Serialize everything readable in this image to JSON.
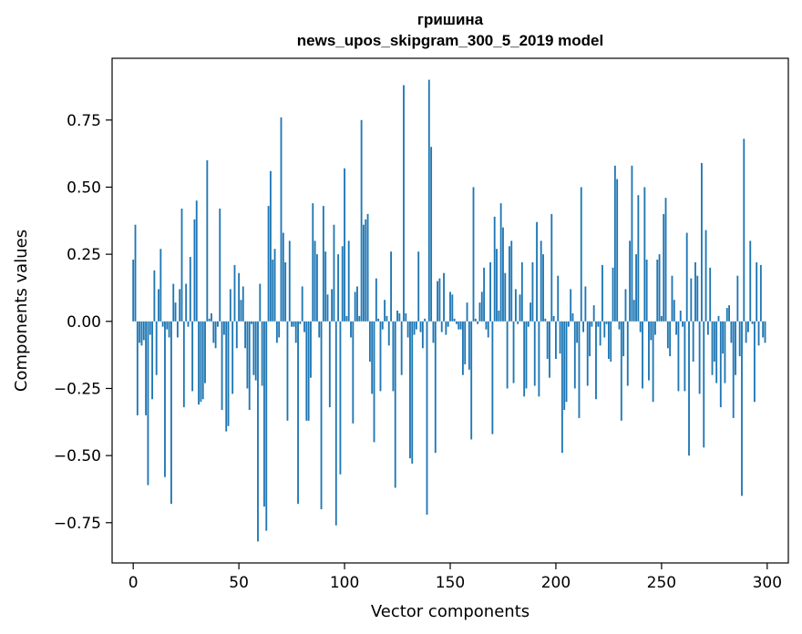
{
  "chart_data": {
    "type": "bar",
    "title_line_1": "гришина",
    "title_line_2": "news_upos_skipgram_300_5_2019 model",
    "xlabel": "Vector components",
    "ylabel": "Components values",
    "xlim": [
      -10,
      310
    ],
    "ylim": [
      -0.9,
      0.98
    ],
    "xticks": [
      0,
      50,
      100,
      150,
      200,
      250,
      300
    ],
    "yticks": [
      -0.75,
      -0.5,
      -0.25,
      0.0,
      0.25,
      0.5,
      0.75
    ],
    "xtick_labels": [
      "0",
      "50",
      "100",
      "150",
      "200",
      "250",
      "300"
    ],
    "ytick_labels": [
      "−0.75",
      "−0.50",
      "−0.25",
      "0.00",
      "0.25",
      "0.50",
      "0.75"
    ],
    "grid": false,
    "bar_color": "#1f77b4",
    "values": [
      0.23,
      0.36,
      -0.35,
      -0.08,
      -0.09,
      -0.07,
      -0.35,
      -0.61,
      -0.05,
      -0.29,
      0.19,
      -0.2,
      0.12,
      0.27,
      -0.02,
      -0.58,
      -0.03,
      -0.06,
      -0.68,
      0.14,
      0.07,
      -0.06,
      0.12,
      0.42,
      -0.32,
      0.14,
      -0.02,
      0.24,
      -0.26,
      0.38,
      0.45,
      -0.31,
      -0.3,
      -0.29,
      -0.23,
      0.6,
      0.01,
      0.03,
      -0.08,
      -0.1,
      -0.02,
      0.42,
      -0.33,
      -0.05,
      -0.41,
      -0.39,
      0.12,
      -0.27,
      0.21,
      -0.1,
      0.18,
      0.08,
      0.13,
      -0.1,
      -0.25,
      -0.33,
      -0.01,
      -0.2,
      -0.22,
      -0.82,
      0.14,
      -0.24,
      -0.69,
      -0.78,
      0.43,
      0.56,
      0.23,
      0.27,
      -0.08,
      -0.06,
      0.76,
      0.33,
      0.22,
      -0.37,
      0.3,
      -0.02,
      -0.02,
      -0.08,
      -0.68,
      -0.01,
      0.13,
      -0.04,
      -0.37,
      -0.37,
      -0.21,
      0.44,
      0.3,
      0.25,
      -0.06,
      -0.7,
      0.43,
      0.26,
      0.1,
      -0.32,
      0.12,
      0.36,
      -0.76,
      0.25,
      -0.57,
      0.28,
      0.57,
      0.02,
      0.3,
      -0.06,
      -0.38,
      0.11,
      0.13,
      0.02,
      0.75,
      0.36,
      0.38,
      0.4,
      -0.15,
      -0.27,
      -0.45,
      0.16,
      0.01,
      -0.26,
      -0.03,
      0.08,
      0.02,
      -0.09,
      0.26,
      -0.26,
      -0.62,
      0.04,
      0.03,
      -0.2,
      0.88,
      0.03,
      -0.06,
      -0.51,
      -0.53,
      -0.05,
      -0.03,
      0.26,
      -0.04,
      -0.1,
      0.01,
      -0.72,
      0.9,
      0.65,
      -0.08,
      -0.49,
      0.15,
      0.16,
      -0.04,
      0.18,
      -0.05,
      -0.02,
      0.11,
      0.1,
      0.01,
      -0.01,
      -0.03,
      -0.03,
      -0.2,
      -0.16,
      0.07,
      -0.18,
      -0.44,
      0.5,
      0.01,
      -0.01,
      0.07,
      0.11,
      0.2,
      -0.03,
      -0.06,
      0.22,
      -0.42,
      0.39,
      0.27,
      0.04,
      0.44,
      0.35,
      0.18,
      -0.25,
      0.28,
      0.3,
      -0.23,
      0.12,
      -0.01,
      0.1,
      0.22,
      -0.28,
      -0.25,
      -0.02,
      0.07,
      0.22,
      -0.24,
      0.37,
      -0.28,
      0.3,
      0.25,
      0.01,
      -0.14,
      -0.21,
      0.4,
      0.02,
      -0.14,
      0.17,
      -0.12,
      -0.49,
      -0.33,
      -0.3,
      -0.02,
      0.12,
      0.03,
      -0.25,
      -0.08,
      -0.36,
      0.5,
      -0.04,
      0.13,
      -0.24,
      -0.13,
      -0.02,
      0.06,
      -0.29,
      -0.02,
      -0.09,
      0.21,
      -0.06,
      -0.01,
      -0.14,
      -0.15,
      0.2,
      0.58,
      0.53,
      -0.03,
      -0.37,
      -0.13,
      0.12,
      -0.24,
      0.3,
      0.58,
      0.08,
      0.25,
      0.47,
      -0.04,
      -0.25,
      0.5,
      0.23,
      -0.22,
      -0.07,
      -0.3,
      -0.05,
      0.23,
      0.25,
      0.02,
      0.4,
      0.46,
      -0.1,
      -0.13,
      0.17,
      0.08,
      -0.05,
      -0.26,
      0.04,
      -0.02,
      -0.26,
      0.33,
      -0.5,
      0.16,
      -0.15,
      0.22,
      0.17,
      -0.27,
      0.59,
      -0.47,
      0.34,
      -0.05,
      0.2,
      -0.2,
      -0.15,
      -0.23,
      0.02,
      -0.32,
      -0.12,
      -0.23,
      0.05,
      0.06,
      -0.08,
      -0.36,
      -0.2,
      0.17,
      -0.13,
      -0.65,
      0.68,
      -0.08,
      -0.04,
      0.3,
      -0.01,
      -0.3,
      0.22,
      -0.09,
      0.21,
      -0.06,
      -0.08
    ]
  }
}
